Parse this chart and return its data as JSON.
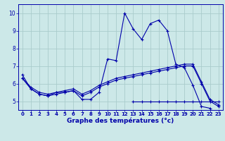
{
  "title": "Graphe des températures (°c)",
  "bg_color": "#cce8e8",
  "grid_color": "#aacccc",
  "line_color": "#0000aa",
  "x_ticks": [
    0,
    1,
    2,
    3,
    4,
    5,
    6,
    7,
    8,
    9,
    10,
    11,
    12,
    13,
    14,
    15,
    16,
    17,
    18,
    19,
    20,
    21,
    22,
    23
  ],
  "ylim": [
    4.5,
    10.5
  ],
  "yticks": [
    5,
    6,
    7,
    8,
    9,
    10
  ],
  "series1_x": [
    0,
    1,
    2,
    3,
    4,
    5,
    6,
    7,
    8,
    9,
    10,
    11,
    12,
    13,
    14,
    15,
    16,
    17,
    18,
    19,
    20,
    21,
    22
  ],
  "series1_y": [
    6.5,
    5.7,
    5.4,
    5.3,
    5.5,
    5.5,
    5.6,
    5.1,
    5.1,
    5.5,
    7.4,
    7.3,
    10.0,
    9.1,
    8.5,
    9.4,
    9.6,
    9.0,
    7.1,
    6.9,
    5.9,
    4.7,
    4.6
  ],
  "series2_x": [
    0,
    1,
    2,
    3,
    4,
    5,
    6,
    7,
    8,
    9,
    10,
    11,
    12,
    13,
    14,
    15,
    16,
    17,
    18,
    19,
    20,
    21,
    22,
    23
  ],
  "series2_y": [
    6.3,
    5.7,
    5.4,
    5.3,
    5.4,
    5.5,
    5.6,
    5.3,
    5.5,
    5.8,
    6.0,
    6.2,
    6.3,
    6.4,
    6.5,
    6.6,
    6.7,
    6.8,
    6.9,
    7.0,
    7.0,
    6.0,
    5.0,
    4.7
  ],
  "series3_x": [
    0,
    1,
    2,
    3,
    4,
    5,
    6,
    7,
    8,
    9,
    10,
    11,
    12,
    13,
    14,
    15,
    16,
    17,
    18,
    19,
    20,
    21,
    22,
    23
  ],
  "series3_y": [
    6.3,
    5.8,
    5.5,
    5.4,
    5.5,
    5.6,
    5.7,
    5.4,
    5.6,
    5.9,
    6.1,
    6.3,
    6.4,
    6.5,
    6.6,
    6.7,
    6.8,
    6.9,
    7.0,
    7.1,
    7.1,
    6.1,
    5.1,
    4.8
  ],
  "series4_x": [
    13,
    14,
    15,
    16,
    17,
    18,
    19,
    20,
    21,
    22,
    23
  ],
  "series4_y": [
    5.0,
    5.0,
    5.0,
    5.0,
    5.0,
    5.0,
    5.0,
    5.0,
    5.0,
    5.0,
    5.0
  ],
  "marker_size": 2.5,
  "line_width": 0.8,
  "tick_fontsize": 5.0,
  "xlabel_fontsize": 6.5
}
